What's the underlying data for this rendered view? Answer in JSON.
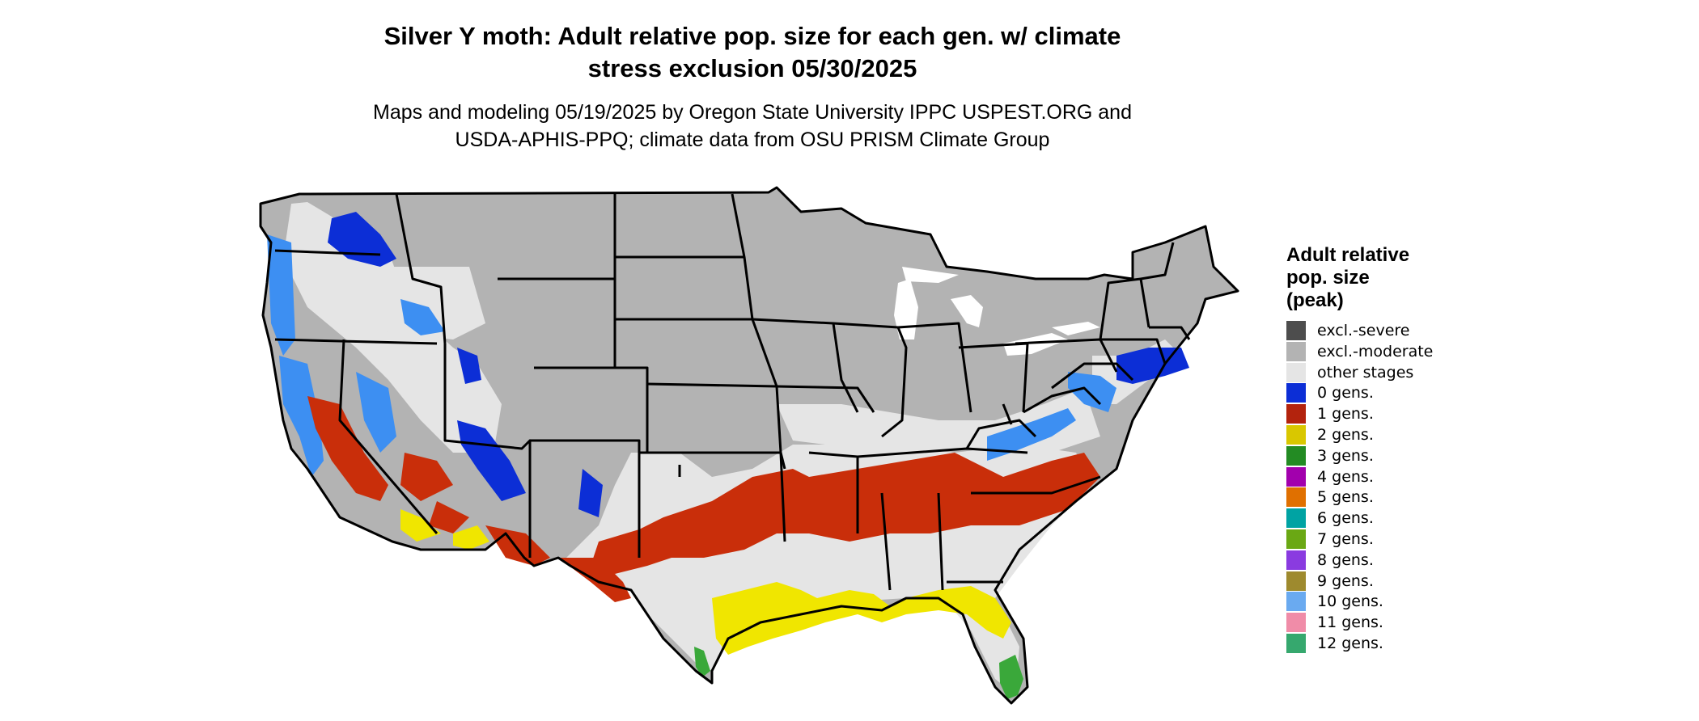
{
  "title": {
    "line1": "Silver Y moth: Adult relative pop. size for each gen. w/ climate",
    "line2": "stress exclusion 05/30/2025"
  },
  "subtitle": {
    "line1": "Maps and modeling 05/19/2025 by Oregon State University IPPC USPEST.ORG and",
    "line2": "USDA-APHIS-PPQ; climate data from OSU PRISM Climate Group"
  },
  "legend": {
    "title_line1": "Adult relative",
    "title_line2": "pop. size",
    "title_line3": "(peak)",
    "items": [
      {
        "label": "excl.-severe",
        "color": "#4d4d4d"
      },
      {
        "label": "excl.-moderate",
        "color": "#b3b3b3"
      },
      {
        "label": "other stages",
        "color": "#e5e5e5"
      },
      {
        "label": "0 gens.",
        "color": "#0c2ed6"
      },
      {
        "label": "1 gens.",
        "color": "#b3230d"
      },
      {
        "label": "2 gens.",
        "color": "#d9c700"
      },
      {
        "label": "3 gens.",
        "color": "#238b23"
      },
      {
        "label": "4 gens.",
        "color": "#a200ad"
      },
      {
        "label": "5 gens.",
        "color": "#e07000"
      },
      {
        "label": "6 gens.",
        "color": "#00a3a3"
      },
      {
        "label": "7 gens.",
        "color": "#6aa814"
      },
      {
        "label": "8 gens.",
        "color": "#8a3be0"
      },
      {
        "label": "9 gens.",
        "color": "#9e8a2e"
      },
      {
        "label": "10 gens.",
        "color": "#6aaaf0"
      },
      {
        "label": "11 gens.",
        "color": "#f08ca8"
      },
      {
        "label": "12 gens.",
        "color": "#36a86e"
      }
    ]
  },
  "map_colors": {
    "excluded": "#b3b3b3",
    "other": "#e5e5e5",
    "zero_gens": "#0c2ed6",
    "zero_gens_light": "#3d8ff2",
    "one_gen": "#c92e0a",
    "two_gens": "#f0e600",
    "three_gens": "#3aa83a",
    "border": "#000000",
    "water": "#ffffff"
  }
}
